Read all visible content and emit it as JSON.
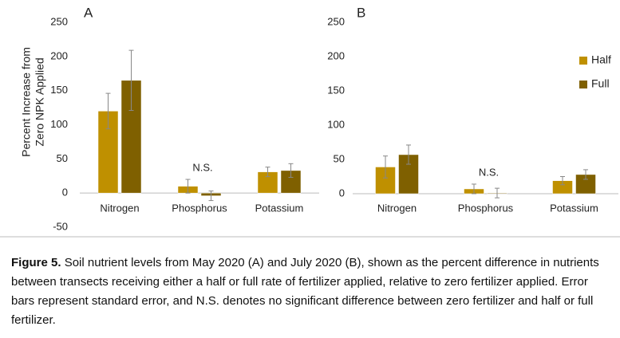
{
  "chart_data": [
    {
      "type": "bar",
      "panel": "A",
      "ylabel": [
        "Percent Increase from",
        "Zero NPK Applied"
      ],
      "categories": [
        "Nitrogen",
        "Phosphorus",
        "Potassium"
      ],
      "series": [
        {
          "name": "Half",
          "color": "#bf9000",
          "values": [
            120,
            10,
            31
          ],
          "errors": [
            26,
            10,
            7
          ]
        },
        {
          "name": "Full",
          "color": "#7f6000",
          "values": [
            165,
            -4,
            33
          ],
          "errors": [
            44,
            7,
            10
          ]
        }
      ],
      "annotation": "N.S.",
      "ylim": [
        -50,
        250
      ],
      "yticks": [
        -50,
        0,
        50,
        100,
        150,
        200,
        250
      ],
      "grid": false,
      "legend": false
    },
    {
      "type": "bar",
      "panel": "B",
      "categories": [
        "Nitrogen",
        "Phosphorus",
        "Potassium"
      ],
      "series": [
        {
          "name": "Half",
          "color": "#bf9000",
          "values": [
            39,
            7,
            19
          ],
          "errors": [
            16,
            7,
            6
          ]
        },
        {
          "name": "Full",
          "color": "#7f6000",
          "values": [
            57,
            1,
            28
          ],
          "errors": [
            14,
            7,
            7
          ]
        }
      ],
      "annotation": "N.S.",
      "ylim": [
        0,
        250
      ],
      "yticks": [
        0,
        50,
        100,
        150,
        200,
        250
      ],
      "grid": false,
      "legend": "right"
    }
  ],
  "caption": {
    "label": "Figure 5.",
    "text": "Soil nutrient levels from May 2020 (A) and July 2020 (B), shown as the percent difference in nutrients between transects receiving either a half or full rate of fertilizer applied, relative to zero fertilizer applied. Error bars represent standard error, and N.S. denotes no significant difference between zero fertilizer and half or full fertilizer."
  }
}
